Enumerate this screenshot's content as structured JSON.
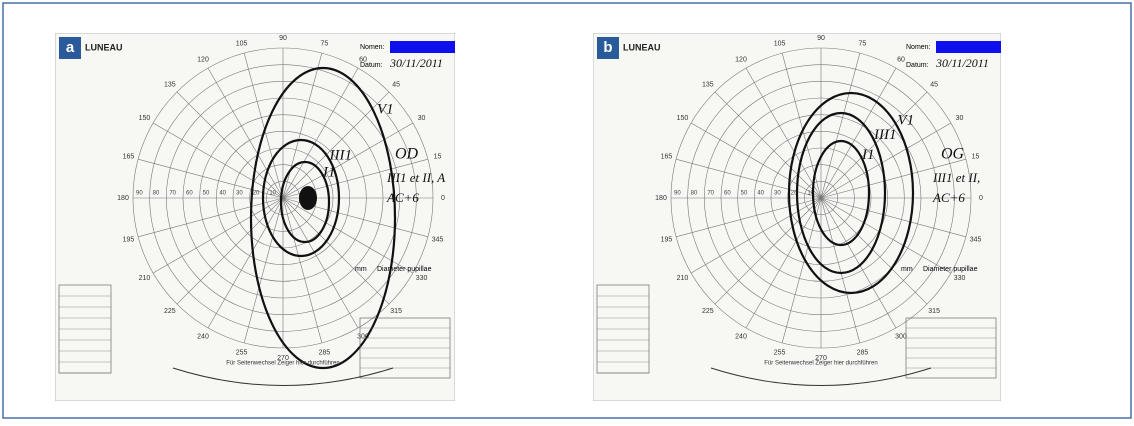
{
  "panels": [
    {
      "letter": "a",
      "brand": "LUNEAU",
      "name_label": "Nomen:",
      "date_label": "Datum:",
      "date": "30/11/2011",
      "isopters": [
        "V1",
        "III1",
        "I1"
      ],
      "eye": "OD",
      "notes": [
        "III1 et II, A",
        "AC+6"
      ],
      "pupil_label": "Diameter pupillae",
      "unit": "mm",
      "footer": "Für Seitenwechsel Zeiger hier durchführen"
    },
    {
      "letter": "b",
      "brand": "LUNEAU",
      "name_label": "Nomen:",
      "date_label": "Datum:",
      "date": "30/11/2011",
      "isopters": [
        "V1",
        "III1",
        "I1"
      ],
      "eye": "OG",
      "notes": [
        "III1 et II,",
        "AC+6"
      ],
      "pupil_label": "Diameter pupillae",
      "unit": "mm",
      "footer": "Für Seitenwechsel Zeiger hier durchführen"
    }
  ],
  "angles": [
    0,
    15,
    30,
    45,
    60,
    75,
    90,
    105,
    120,
    135,
    150,
    165,
    180,
    195,
    210,
    225,
    240,
    255,
    270,
    285,
    300,
    315,
    330,
    345
  ],
  "radii": [
    10,
    20,
    30,
    40,
    50,
    60,
    70,
    80,
    90
  ]
}
